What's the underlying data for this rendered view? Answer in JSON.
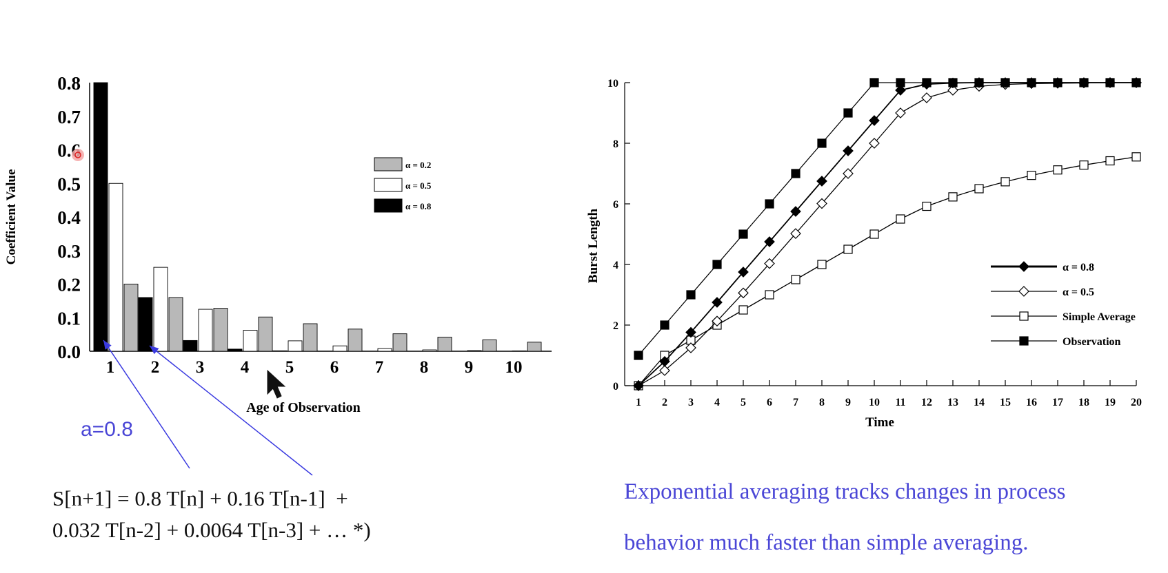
{
  "chart_data": [
    {
      "type": "bar",
      "title": "",
      "xlabel": "Age of Observation",
      "ylabel": "Coefficient Value",
      "categories": [
        "1",
        "2",
        "3",
        "4",
        "5",
        "6",
        "7",
        "8",
        "9",
        "10"
      ],
      "yticks": [
        "0.0",
        "0.1",
        "0.2",
        "0.3",
        "0.4",
        "0.5",
        "0.6",
        "0.7",
        "0.8"
      ],
      "ylim": [
        0,
        0.8
      ],
      "series": [
        {
          "name": "α = 0.8",
          "color": "#000000",
          "values": [
            0.8,
            0.16,
            0.032,
            0.0064,
            0.0013,
            0.0003,
            0.0001,
            0,
            0,
            0
          ]
        },
        {
          "name": "α = 0.5",
          "color": "#ffffff",
          "values": [
            0.5,
            0.25,
            0.125,
            0.0625,
            0.031,
            0.016,
            0.008,
            0.004,
            0.002,
            0.001
          ]
        },
        {
          "name": "α = 0.2",
          "color": "#b8b8b8",
          "values": [
            0.2,
            0.16,
            0.128,
            0.102,
            0.082,
            0.066,
            0.052,
            0.042,
            0.034,
            0.027
          ]
        }
      ],
      "legend": {
        "position": "right",
        "entries": [
          "α = 0.2",
          "α = 0.5",
          "α = 0.8"
        ]
      }
    },
    {
      "type": "line",
      "title": "",
      "xlabel": "Time",
      "ylabel": "Burst Length",
      "x": [
        1,
        2,
        3,
        4,
        5,
        6,
        7,
        8,
        9,
        10,
        11,
        12,
        13,
        14,
        15,
        16,
        17,
        18,
        19,
        20
      ],
      "xticks": [
        "1",
        "2",
        "3",
        "4",
        "5",
        "6",
        "7",
        "8",
        "9",
        "10",
        "11",
        "12",
        "13",
        "14",
        "15",
        "16",
        "17",
        "18",
        "19",
        "20"
      ],
      "yticks": [
        "0",
        "2",
        "4",
        "6",
        "8",
        "10"
      ],
      "ylim": [
        0,
        10
      ],
      "series": [
        {
          "name": "α = 0.8",
          "marker": "diamond-filled",
          "values": [
            0,
            0.8,
            1.76,
            2.75,
            3.75,
            4.75,
            5.75,
            6.75,
            7.75,
            8.75,
            9.75,
            9.95,
            9.99,
            10,
            10,
            10,
            10,
            10,
            10,
            10
          ]
        },
        {
          "name": "α = 0.5",
          "marker": "diamond-open",
          "values": [
            0,
            0.5,
            1.25,
            2.13,
            3.06,
            4.03,
            5.02,
            6.01,
            7.0,
            8.0,
            9.0,
            9.5,
            9.75,
            9.88,
            9.94,
            9.97,
            9.98,
            9.99,
            10,
            10
          ]
        },
        {
          "name": "Simple Average",
          "marker": "square-open",
          "values": [
            0,
            1.0,
            1.5,
            2.0,
            2.5,
            3.0,
            3.5,
            4.0,
            4.5,
            5.0,
            5.5,
            5.92,
            6.23,
            6.5,
            6.73,
            6.94,
            7.12,
            7.28,
            7.42,
            7.55
          ]
        },
        {
          "name": "Observation",
          "marker": "square-filled",
          "values": [
            1,
            2,
            3,
            4,
            5,
            6,
            7,
            8,
            9,
            10,
            10,
            10,
            10,
            10,
            10,
            10,
            10,
            10,
            10,
            10
          ]
        }
      ],
      "legend": {
        "position": "bottom-right",
        "entries": [
          "α = 0.8",
          "α = 0.5",
          "Simple Average",
          "Observation"
        ]
      }
    }
  ],
  "annotations": {
    "alpha_label": "a=0.8",
    "equation_line1": "S[n+1] = 0.8 T[n] + 0.16 T[n-1]  +",
    "equation_line2": "0.032 T[n-2] + 0.0064 T[n-3] + … *)",
    "caption_line1": "Exponential averaging tracks changes in process",
    "caption_line2": "behavior much faster than simple averaging."
  },
  "colors": {
    "accent_blue": "#4a46d6",
    "arrow_blue": "#3a3ae0"
  }
}
